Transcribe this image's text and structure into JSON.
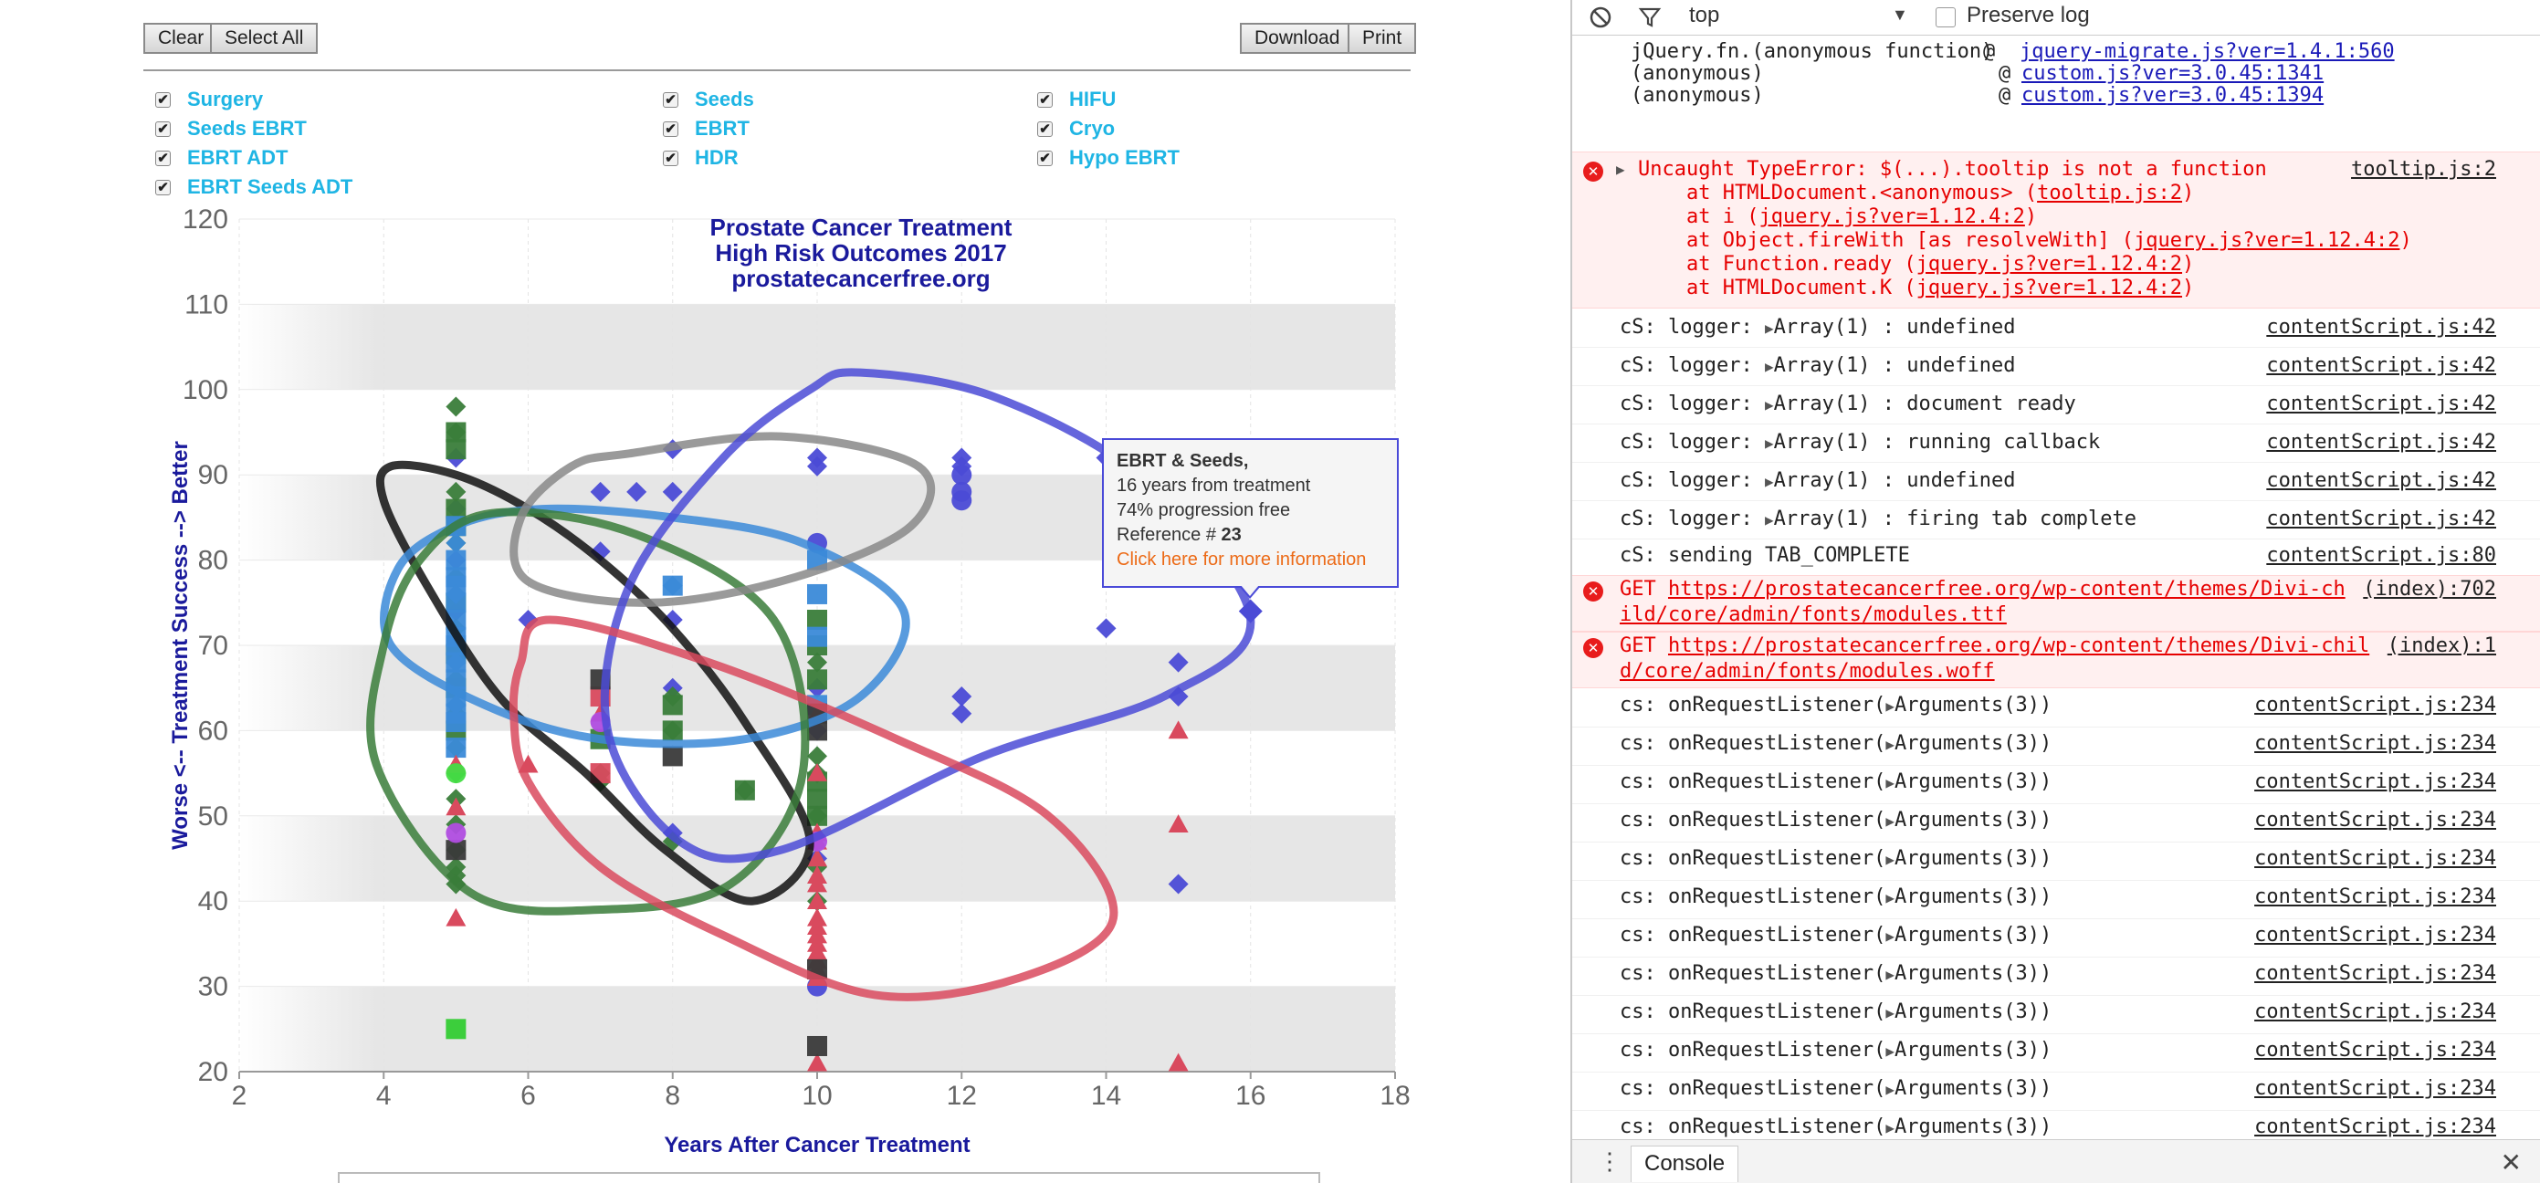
{
  "toolbar": {
    "clear_label": "Clear",
    "select_all_label": "Select All",
    "download_label": "Download",
    "print_label": "Print"
  },
  "legend": {
    "items": [
      {
        "label": "Surgery",
        "checked": true
      },
      {
        "label": "Seeds",
        "checked": true
      },
      {
        "label": "HIFU",
        "checked": true
      },
      {
        "label": "Seeds EBRT",
        "checked": true
      },
      {
        "label": "EBRT",
        "checked": true
      },
      {
        "label": "Cryo",
        "checked": true
      },
      {
        "label": "EBRT ADT",
        "checked": true
      },
      {
        "label": "HDR",
        "checked": true
      },
      {
        "label": "Hypo EBRT",
        "checked": true
      },
      {
        "label": "EBRT Seeds ADT",
        "checked": true
      }
    ],
    "check_glyph": "✔"
  },
  "chart_data": {
    "type": "scatter",
    "title": [
      "Prostate Cancer Treatment",
      "High Risk Outcomes 2017",
      "prostatecancerfree.org"
    ],
    "xlabel": "Years After Cancer Treatment",
    "ylabel": "Worse <-- Treatment Success --> Better",
    "xlim": [
      2,
      18
    ],
    "ylim": [
      20,
      120
    ],
    "x_ticks": [
      2,
      4,
      6,
      8,
      10,
      12,
      14,
      16,
      18
    ],
    "y_ticks": [
      20,
      30,
      40,
      50,
      60,
      70,
      80,
      90,
      100,
      110,
      120
    ],
    "band_color": "#e6e6e6",
    "colors": {
      "title": "#1a1a9c",
      "axis_label": "#1a1a9c",
      "tick": "#666666"
    },
    "series": [
      {
        "marker": "diamond",
        "color": "#4b4bd6",
        "points": [
          [
            5,
            92
          ],
          [
            5,
            86
          ],
          [
            5,
            80
          ],
          [
            5,
            74
          ],
          [
            6,
            73
          ],
          [
            7,
            88
          ],
          [
            7,
            81
          ],
          [
            7.5,
            88
          ],
          [
            8,
            93
          ],
          [
            8,
            88
          ],
          [
            8,
            73
          ],
          [
            8,
            65
          ],
          [
            8,
            48
          ],
          [
            10,
            92
          ],
          [
            10,
            91
          ],
          [
            10,
            65
          ],
          [
            10,
            60
          ],
          [
            10,
            45
          ],
          [
            12,
            92
          ],
          [
            12,
            91
          ],
          [
            12,
            64
          ],
          [
            12,
            62
          ],
          [
            14,
            92
          ],
          [
            14,
            72
          ],
          [
            15,
            68
          ],
          [
            15,
            64
          ],
          [
            15,
            42
          ],
          [
            16,
            74
          ]
        ]
      },
      {
        "marker": "circle",
        "color": "#4b4bd6",
        "points": [
          [
            10,
            82
          ],
          [
            10,
            30
          ],
          [
            12,
            90
          ],
          [
            12,
            88
          ],
          [
            12,
            87
          ]
        ]
      },
      {
        "marker": "diamond",
        "color": "#3a7d3a",
        "points": [
          [
            5,
            98
          ],
          [
            5,
            95
          ],
          [
            5,
            88
          ],
          [
            5,
            82
          ],
          [
            5,
            78
          ],
          [
            5,
            72
          ],
          [
            5,
            66
          ],
          [
            5,
            62
          ],
          [
            5,
            58
          ],
          [
            5,
            55
          ],
          [
            5,
            52
          ],
          [
            5,
            49
          ],
          [
            5,
            46
          ],
          [
            5,
            44
          ],
          [
            5,
            43
          ],
          [
            5,
            42
          ],
          [
            7,
            55
          ],
          [
            7,
            54
          ],
          [
            8,
            64
          ],
          [
            8,
            60
          ],
          [
            8,
            47
          ],
          [
            9,
            53
          ],
          [
            10,
            68
          ],
          [
            10,
            57
          ],
          [
            10,
            55
          ],
          [
            10,
            50
          ],
          [
            10,
            44
          ],
          [
            10,
            40
          ]
        ]
      },
      {
        "marker": "square",
        "color": "#3a7d3a",
        "points": [
          [
            5,
            95
          ],
          [
            5,
            93
          ],
          [
            5,
            86
          ],
          [
            5,
            84
          ],
          [
            5,
            75
          ],
          [
            5,
            69
          ],
          [
            5,
            65
          ],
          [
            5,
            60
          ],
          [
            7,
            59
          ],
          [
            8,
            63
          ],
          [
            8,
            60
          ],
          [
            9,
            53
          ],
          [
            10,
            73
          ],
          [
            10,
            70
          ],
          [
            10,
            66
          ],
          [
            10,
            54
          ],
          [
            10,
            52
          ],
          [
            10,
            50
          ]
        ]
      },
      {
        "marker": "square",
        "color": "#3b8ad8",
        "points": [
          [
            5,
            84
          ],
          [
            5,
            80
          ],
          [
            5,
            78
          ],
          [
            5,
            77
          ],
          [
            5,
            75
          ],
          [
            5,
            73
          ],
          [
            5,
            71
          ],
          [
            5,
            70
          ],
          [
            5,
            68
          ],
          [
            5,
            66
          ],
          [
            5,
            64
          ],
          [
            5,
            62
          ],
          [
            5,
            61
          ],
          [
            5,
            58
          ],
          [
            8,
            77
          ],
          [
            10,
            80
          ],
          [
            10,
            76
          ],
          [
            10,
            71
          ],
          [
            10,
            63
          ]
        ]
      },
      {
        "marker": "diamond",
        "color": "#3b8ad8",
        "points": [
          [
            5,
            82
          ],
          [
            5,
            76
          ],
          [
            5,
            68
          ],
          [
            5,
            63
          ],
          [
            8,
            77
          ]
        ]
      },
      {
        "marker": "triangle",
        "color": "#d94a5e",
        "points": [
          [
            5,
            56
          ],
          [
            5,
            51
          ],
          [
            5,
            38
          ],
          [
            6,
            56
          ],
          [
            7,
            62
          ],
          [
            10,
            62
          ],
          [
            10,
            55
          ],
          [
            10,
            48
          ],
          [
            10,
            47
          ],
          [
            10,
            45
          ],
          [
            10,
            43
          ],
          [
            10,
            42
          ],
          [
            10,
            40
          ],
          [
            10,
            38
          ],
          [
            10,
            37
          ],
          [
            10,
            36
          ],
          [
            10,
            35
          ],
          [
            10,
            34
          ],
          [
            10,
            33
          ],
          [
            10,
            32
          ],
          [
            10,
            31
          ],
          [
            10,
            21
          ],
          [
            15,
            60
          ],
          [
            15,
            49
          ],
          [
            15,
            21
          ]
        ]
      },
      {
        "marker": "square",
        "color": "#d94a5e",
        "points": [
          [
            7,
            64
          ],
          [
            7,
            55
          ]
        ]
      },
      {
        "marker": "square",
        "color": "#3a3a3a",
        "points": [
          [
            5,
            46
          ],
          [
            7,
            66
          ],
          [
            8,
            57
          ],
          [
            10,
            62
          ],
          [
            10,
            60
          ],
          [
            10,
            32
          ],
          [
            10,
            23
          ]
        ]
      },
      {
        "marker": "circle",
        "color": "#b04de0",
        "points": [
          [
            5,
            48
          ],
          [
            7,
            61
          ],
          [
            10,
            47
          ]
        ]
      },
      {
        "marker": "circle",
        "color": "#44dd44",
        "points": [
          [
            5,
            55
          ]
        ]
      },
      {
        "marker": "square",
        "color": "#33cc33",
        "points": [
          [
            5,
            25
          ]
        ]
      }
    ],
    "ellipses": [
      {
        "color": "#111111",
        "path": [
          [
            4.1,
            91
          ],
          [
            5,
            90
          ],
          [
            6,
            86
          ],
          [
            7,
            80
          ],
          [
            8,
            72
          ],
          [
            9,
            61
          ],
          [
            9.9,
            47
          ],
          [
            9.1,
            40
          ],
          [
            7.9,
            46
          ],
          [
            6.8,
            55
          ],
          [
            5.6,
            64
          ],
          [
            4.6,
            77
          ],
          [
            4,
            87
          ]
        ]
      },
      {
        "color": "#3b8ad8",
        "path": [
          [
            6.2,
            86
          ],
          [
            8,
            85
          ],
          [
            9.8,
            82
          ],
          [
            11.2,
            74
          ],
          [
            10.6,
            64
          ],
          [
            9,
            59
          ],
          [
            7,
            59
          ],
          [
            5.4,
            63
          ],
          [
            4.1,
            70
          ],
          [
            4.2,
            79
          ],
          [
            5,
            84
          ]
        ]
      },
      {
        "color": "#3a7d3a",
        "path": [
          [
            5.5,
            85.5
          ],
          [
            7.5,
            83
          ],
          [
            9.4,
            73
          ],
          [
            9.8,
            55
          ],
          [
            8.8,
            42
          ],
          [
            7,
            39
          ],
          [
            5.2,
            41
          ],
          [
            3.9,
            56
          ],
          [
            4,
            70
          ],
          [
            4.5,
            80
          ]
        ]
      },
      {
        "color": "#888888",
        "path": [
          [
            7.4,
            92.5
          ],
          [
            9.5,
            94.5
          ],
          [
            11.4,
            91
          ],
          [
            11.3,
            84
          ],
          [
            9.7,
            78
          ],
          [
            7.7,
            75
          ],
          [
            6,
            77.5
          ],
          [
            5.9,
            85
          ],
          [
            6.6,
            91
          ]
        ]
      },
      {
        "color": "#4b4bd6",
        "path": [
          [
            10.6,
            102
          ],
          [
            12.5,
            99
          ],
          [
            14.6,
            89
          ],
          [
            16,
            73
          ],
          [
            14.8,
            64
          ],
          [
            12.3,
            57
          ],
          [
            9.5,
            46
          ],
          [
            8.1,
            47
          ],
          [
            7.1,
            60
          ],
          [
            7.4,
            77
          ],
          [
            8.7,
            92
          ],
          [
            9.9,
            100
          ]
        ]
      },
      {
        "color": "#d94a5e",
        "path": [
          [
            6.3,
            73
          ],
          [
            8.5,
            68
          ],
          [
            11.1,
            59
          ],
          [
            13.2,
            50
          ],
          [
            14.1,
            38
          ],
          [
            12.8,
            31
          ],
          [
            10.8,
            29
          ],
          [
            8.7,
            36
          ],
          [
            7,
            44
          ],
          [
            6,
            54
          ],
          [
            5.8,
            62
          ],
          [
            5.9,
            68
          ]
        ]
      }
    ]
  },
  "tooltip": {
    "title": "EBRT & Seeds,",
    "years": "16 years from treatment",
    "progression": "74% progression free",
    "reference_prefix": "Reference # ",
    "reference_number": "23",
    "link": "Click here for more information"
  },
  "devtools": {
    "context": "top",
    "context_arrow": "▼",
    "preserve_log_label": "Preserve log",
    "clear_icon": "⃠",
    "filter_icon": "⛉",
    "tab_label": "Console",
    "menu_icon": "⋮",
    "close_icon": "✕",
    "stack_top": [
      {
        "left": "jQuery.fn.(anonymous function)",
        "at": "@ ",
        "link": "jquery-migrate.js?ver=1.4.1:560"
      },
      {
        "left": "(anonymous)",
        "at": "@ ",
        "link": "custom.js?ver=3.0.45:1341"
      },
      {
        "left": "(anonymous)",
        "at": "@ ",
        "link": "custom.js?ver=3.0.45:1394"
      }
    ],
    "error1": {
      "head": "Uncaught TypeError: $(...).tooltip is not a function",
      "src": "tooltip.js:2",
      "lines": [
        {
          "pre": "    at HTMLDocument.<anonymous> (",
          "link": "tooltip.js:2",
          "post": ")"
        },
        {
          "pre": "    at i (",
          "link": "jquery.js?ver=1.12.4:2",
          "post": ")"
        },
        {
          "pre": "    at Object.fireWith [as resolveWith] (",
          "link": "jquery.js?ver=1.12.4:2",
          "post": ")"
        },
        {
          "pre": "    at Function.ready (",
          "link": "jquery.js?ver=1.12.4:2",
          "post": ")"
        },
        {
          "pre": "    at HTMLDocument.K (",
          "link": "jquery.js?ver=1.12.4:2",
          "post": ")"
        }
      ]
    },
    "logger_rows": [
      {
        "pre": "cS: logger: ",
        "arr": "Array(1)",
        "post": " : undefined",
        "src": "contentScript.js:42"
      },
      {
        "pre": "cS: logger: ",
        "arr": "Array(1)",
        "post": " : undefined",
        "src": "contentScript.js:42"
      },
      {
        "pre": "cS: logger: ",
        "arr": "Array(1)",
        "post": " : document ready",
        "src": "contentScript.js:42"
      },
      {
        "pre": "cS: logger: ",
        "arr": "Array(1)",
        "post": " : running callback",
        "src": "contentScript.js:42"
      },
      {
        "pre": "cS: logger: ",
        "arr": "Array(1)",
        "post": " : undefined",
        "src": "contentScript.js:42"
      },
      {
        "pre": "cS: logger: ",
        "arr": "Array(1)",
        "post": " : firing tab complete",
        "src": "contentScript.js:42"
      }
    ],
    "sending_row": {
      "text": "cS: sending TAB_COMPLETE",
      "src": "contentScript.js:80"
    },
    "get_rows": [
      {
        "method": "GET ",
        "url1": "https://prostatecancerfree.org/wp-content/themes/Divi-ch",
        "url2": "ild/core/admin/fonts/modules.ttf",
        "src": "(index):702"
      },
      {
        "method": "GET ",
        "url1": "https://prostatecancerfree.org/wp-content/themes/Divi-chil",
        "url2": "d/core/admin/fonts/modules.woff",
        "src": "(index):1"
      }
    ],
    "listener_row": {
      "pre": "cs: onRequestListener(",
      "arr": "Arguments(3)",
      "post": ")",
      "src": "contentScript.js:234"
    },
    "listener_count": 13
  }
}
